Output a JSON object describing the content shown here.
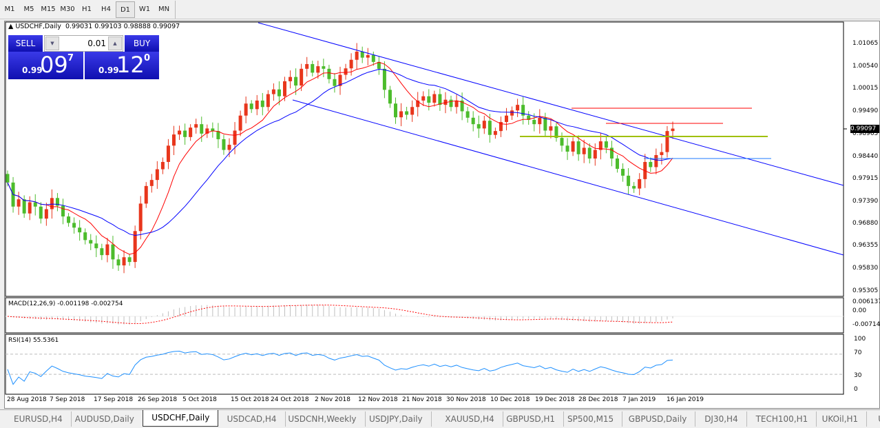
{
  "timeframes": [
    "M1",
    "M5",
    "M15",
    "M30",
    "H1",
    "H4",
    "D1",
    "W1",
    "MN"
  ],
  "active_timeframe": "D1",
  "header": {
    "symbol": "USDCHF,Daily",
    "ohlc": "0.99031 0.99103 0.98888 0.99097"
  },
  "trade": {
    "sell_label": "SELL",
    "buy_label": "BUY",
    "lot": "0.01",
    "sell_small": "0.99",
    "sell_big": "09",
    "sell_sup": "7",
    "buy_small": "0.99",
    "buy_big": "12",
    "buy_sup": "0"
  },
  "price_axis": [
    "1.01065",
    "1.00540",
    "1.00015",
    "0.99490",
    "0.98965",
    "0.98440",
    "0.97915",
    "0.97390",
    "0.96880",
    "0.96355",
    "0.95830",
    "0.95305"
  ],
  "current_price": "0.99097",
  "macd": {
    "label": "MACD(12,26,9) -0.001198 -0.002754",
    "axis": [
      "0.006137",
      "0.00",
      "-0.007142"
    ]
  },
  "rsi": {
    "label": "RSI(14) 55.5361",
    "axis": [
      "100",
      "70",
      "30",
      "0"
    ]
  },
  "date_axis": [
    "28 Aug 2018",
    "7 Sep 2018",
    "17 Sep 2018",
    "26 Sep 2018",
    "5 Oct 2018",
    "15 Oct 2018",
    "24 Oct 2018",
    "2 Nov 2018",
    "12 Nov 2018",
    "21 Nov 2018",
    "30 Nov 2018",
    "10 Dec 2018",
    "19 Dec 2018",
    "28 Dec 2018",
    "7 Jan 2019",
    "16 Jan 2019"
  ],
  "tabs": [
    "EURUSD,H4",
    "AUDUSD,Daily",
    "USDCHF,Daily",
    "USDCAD,H4",
    "USDCNH,Weekly",
    "USDJPY,Daily",
    "XAUUSD,H4",
    "GBPUSD,H1",
    "SP500,M15",
    "GBPUSD,Daily",
    "DJ30,H4",
    "TECH100,H1",
    "UKOil,H1",
    "U"
  ],
  "active_tab": "USDCHF,Daily",
  "colors": {
    "bull": "#e8361c",
    "bear": "#4cbc2c",
    "ma_fast": "#ff0000",
    "ma_slow": "#0000ff",
    "channel": "#0000ff",
    "rsi": "#1e90ff",
    "macd_signal": "#ff0000",
    "macd_hist": "#c0c0c0"
  },
  "chart_data": {
    "type": "candlestick",
    "closes": [
      0.9784,
      0.9728,
      0.9745,
      0.9712,
      0.9738,
      0.9728,
      0.97,
      0.9722,
      0.9748,
      0.973,
      0.9705,
      0.969,
      0.9679,
      0.9668,
      0.965,
      0.9642,
      0.9631,
      0.9615,
      0.964,
      0.9605,
      0.9591,
      0.961,
      0.9599,
      0.9671,
      0.9735,
      0.9776,
      0.979,
      0.9815,
      0.9832,
      0.987,
      0.9896,
      0.9905,
      0.989,
      0.9912,
      0.992,
      0.9898,
      0.991,
      0.9904,
      0.9885,
      0.986,
      0.9872,
      0.9905,
      0.994,
      0.9968,
      0.9955,
      0.9975,
      0.996,
      0.999,
      1.0001,
      0.9985,
      1.002,
      1.003,
      1.001,
      1.0049,
      1.006,
      1.004,
      1.0055,
      1.0049,
      1.0025,
      1.0009,
      1.0035,
      1.005,
      1.007,
      1.0089,
      1.0075,
      1.0081,
      1.0065,
      1.0049,
      1.0,
      0.9968,
      0.9936,
      0.995,
      0.9942,
      0.996,
      0.9975,
      0.9985,
      0.997,
      0.999,
      0.9965,
      0.9977,
      0.996,
      0.9975,
      0.995,
      0.9935,
      0.992,
      0.991,
      0.9928,
      0.9895,
      0.9904,
      0.9925,
      0.994,
      0.9952,
      0.9965,
      0.994,
      0.993,
      0.992,
      0.9935,
      0.9905,
      0.9915,
      0.9888,
      0.987,
      0.9856,
      0.988,
      0.985,
      0.9865,
      0.984,
      0.986,
      0.988,
      0.9865,
      0.984,
      0.9816,
      0.98,
      0.9776,
      0.977,
      0.9792,
      0.9832,
      0.982,
      0.9848,
      0.9855,
      0.9904,
      0.99097
    ],
    "ylim": [
      0.95305,
      1.01065
    ]
  }
}
